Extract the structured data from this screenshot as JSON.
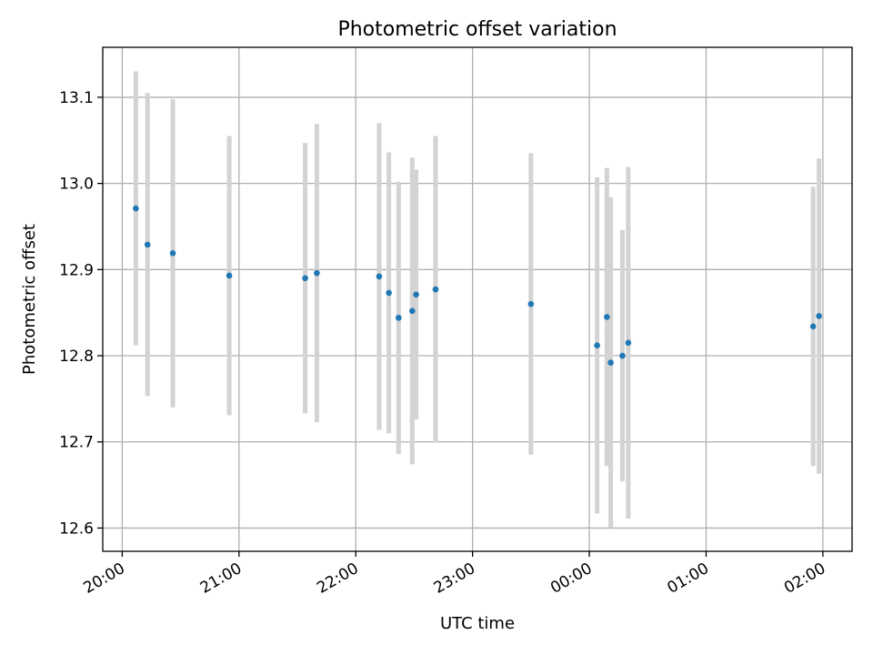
{
  "chart_data": {
    "type": "scatter",
    "title": "Photometric offset variation",
    "xlabel": "UTC time",
    "ylabel": "Photometric offset",
    "x_axis_kind": "time",
    "xlim": [
      "2000-01-01T19:50",
      "2000-01-02T02:15"
    ],
    "ylim": [
      12.573,
      13.158
    ],
    "x_ticks": [
      {
        "t": "2000-01-01T20:00",
        "label": "20:00"
      },
      {
        "t": "2000-01-01T21:00",
        "label": "21:00"
      },
      {
        "t": "2000-01-01T22:00",
        "label": "22:00"
      },
      {
        "t": "2000-01-01T23:00",
        "label": "23:00"
      },
      {
        "t": "2000-01-02T00:00",
        "label": "00:00"
      },
      {
        "t": "2000-01-02T01:00",
        "label": "01:00"
      },
      {
        "t": "2000-01-02T02:00",
        "label": "02:00"
      }
    ],
    "y_ticks": [
      {
        "v": 12.6,
        "label": "12.6"
      },
      {
        "v": 12.7,
        "label": "12.7"
      },
      {
        "v": 12.8,
        "label": "12.8"
      },
      {
        "v": 12.9,
        "label": "12.9"
      },
      {
        "v": 13.0,
        "label": "13.0"
      },
      {
        "v": 13.1,
        "label": "13.1"
      }
    ],
    "grid": true,
    "point_color": "#1f77b4",
    "errorbar_color": "#d3d3d3",
    "points": [
      {
        "t": "2000-01-01T20:07",
        "y": 12.971,
        "err": 0.159
      },
      {
        "t": "2000-01-01T20:13",
        "y": 12.929,
        "err": 0.176
      },
      {
        "t": "2000-01-01T20:26",
        "y": 12.919,
        "err": 0.179
      },
      {
        "t": "2000-01-01T20:55",
        "y": 12.893,
        "err": 0.162
      },
      {
        "t": "2000-01-01T21:34",
        "y": 12.89,
        "err": 0.157
      },
      {
        "t": "2000-01-01T21:40",
        "y": 12.896,
        "err": 0.173
      },
      {
        "t": "2000-01-01T22:12",
        "y": 12.892,
        "err": 0.178
      },
      {
        "t": "2000-01-01T22:17",
        "y": 12.873,
        "err": 0.163
      },
      {
        "t": "2000-01-01T22:22",
        "y": 12.844,
        "err": 0.158
      },
      {
        "t": "2000-01-01T22:29",
        "y": 12.852,
        "err": 0.178
      },
      {
        "t": "2000-01-01T22:31",
        "y": 12.871,
        "err": 0.145
      },
      {
        "t": "2000-01-01T22:41",
        "y": 12.877,
        "err": 0.178
      },
      {
        "t": "2000-01-01T23:30",
        "y": 12.86,
        "err": 0.175
      },
      {
        "t": "2000-01-02T00:04",
        "y": 12.812,
        "err": 0.195
      },
      {
        "t": "2000-01-02T00:09",
        "y": 12.845,
        "err": 0.173
      },
      {
        "t": "2000-01-02T00:11",
        "y": 12.792,
        "err": 0.192
      },
      {
        "t": "2000-01-02T00:17",
        "y": 12.8,
        "err": 0.146
      },
      {
        "t": "2000-01-02T00:20",
        "y": 12.815,
        "err": 0.204
      },
      {
        "t": "2000-01-02T01:55",
        "y": 12.834,
        "err": 0.162
      },
      {
        "t": "2000-01-02T01:58",
        "y": 12.846,
        "err": 0.183
      }
    ]
  }
}
